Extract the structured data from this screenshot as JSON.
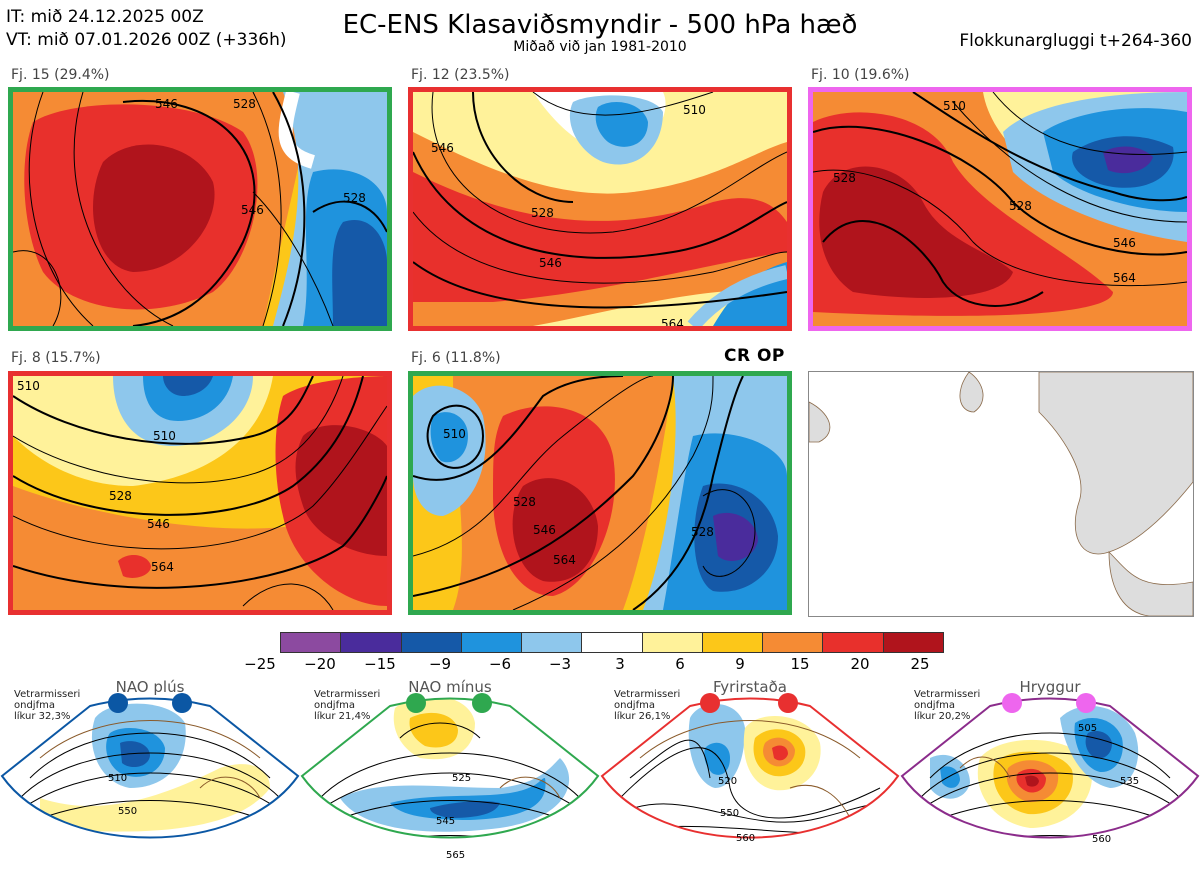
{
  "header": {
    "it_line": "IT: mið 24.12.2025 00Z",
    "vt_line": "VT: mið 07.01.2026 00Z  (+336h)",
    "title": "EC-ENS Klasaviðsmyndir - 500 hPa hæð",
    "subtitle": "Miðað við jan 1981-2010",
    "window": "Flokkunargluggi t+264-360"
  },
  "clusters": [
    {
      "label": "Fj. 15 (29.4%)",
      "border_color": "#2fa84f",
      "contours": [
        "546",
        "528",
        "546",
        "528"
      ]
    },
    {
      "label": "Fj. 12 (23.5%)",
      "border_color": "#e83030",
      "contours": [
        "510",
        "546",
        "528",
        "546",
        "564"
      ]
    },
    {
      "label": "Fj. 10 (19.6%)",
      "border_color": "#ee66ee",
      "contours": [
        "510",
        "528",
        "546",
        "564",
        "528"
      ]
    },
    {
      "label": "Fj. 8 (15.7%)",
      "border_color": "#e83030",
      "contours": [
        "510",
        "528",
        "546",
        "564",
        "510"
      ]
    },
    {
      "label": "Fj. 6 (11.8%)",
      "border_color": "#2fa84f",
      "contours": [
        "510",
        "528",
        "546",
        "564",
        "528"
      ]
    }
  ],
  "cr_op_label": "CR OP",
  "colorbar": {
    "colors": [
      "#8c4aa0",
      "#4a2c9c",
      "#1559a8",
      "#1f93dd",
      "#8ec7ec",
      "#ffffff",
      "#fff29a",
      "#fcc719",
      "#f58b34",
      "#e8302c",
      "#b0141c"
    ],
    "ticks": [
      "−25",
      "−20",
      "−15",
      "−9",
      "−6",
      "−3",
      "3",
      "6",
      "9",
      "15",
      "20",
      "25"
    ]
  },
  "regimes": [
    {
      "name": "NAO plús",
      "info": [
        "Vetrarmisseri",
        "ondjfma",
        "líkur 32,3%"
      ],
      "color": "#0b57a4",
      "contours": [
        "510",
        "550"
      ]
    },
    {
      "name": "NAO mínus",
      "info": [
        "Vetrarmisseri",
        "ondjfma",
        "líkur 21,4%"
      ],
      "color": "#2fa84f",
      "contours": [
        "525",
        "545",
        "565"
      ]
    },
    {
      "name": "Fyrirstaða",
      "info": [
        "Vetrarmisseri",
        "ondjfma",
        "líkur 26,1%"
      ],
      "color": "#e83030",
      "contours": [
        "520",
        "550",
        "560"
      ]
    },
    {
      "name": "Hryggur",
      "info": [
        "Vetrarmisseri",
        "ondjfma",
        "líkur 20,2%"
      ],
      "color": "#ee66ee",
      "contours": [
        "505",
        "535",
        "560"
      ]
    }
  ]
}
